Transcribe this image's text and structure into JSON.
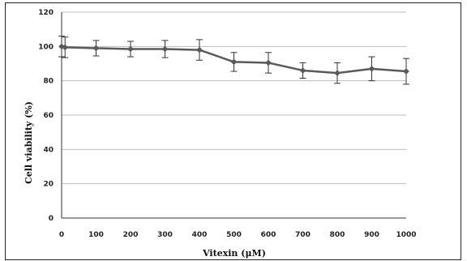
{
  "chart_data": {
    "type": "line",
    "title": "",
    "xlabel": "Vitexin (μM)",
    "ylabel": "Cell viability (%)",
    "xlim": [
      0,
      1000
    ],
    "ylim": [
      0,
      120
    ],
    "x_ticks": [
      0,
      100,
      200,
      300,
      400,
      500,
      600,
      700,
      800,
      900,
      1000
    ],
    "y_ticks": [
      0,
      20,
      40,
      60,
      80,
      100,
      120
    ],
    "grid": true,
    "legend": "none",
    "colors": {
      "line": "#5a5a5a",
      "marker": "#5a5a5a",
      "error_bar": "#333333",
      "grid": "#bdbdbd",
      "axis": "#333333"
    },
    "series": [
      {
        "x": [
          0,
          10,
          100,
          200,
          300,
          400,
          500,
          600,
          700,
          800,
          900,
          1000
        ],
        "y": [
          100,
          99.5,
          99,
          98.5,
          98.5,
          98,
          91,
          90.5,
          86,
          84.5,
          87,
          85.5
        ],
        "error": [
          6,
          6,
          4.5,
          4.5,
          5,
          6,
          5.5,
          6,
          4.5,
          6,
          7,
          7.5
        ]
      }
    ]
  }
}
